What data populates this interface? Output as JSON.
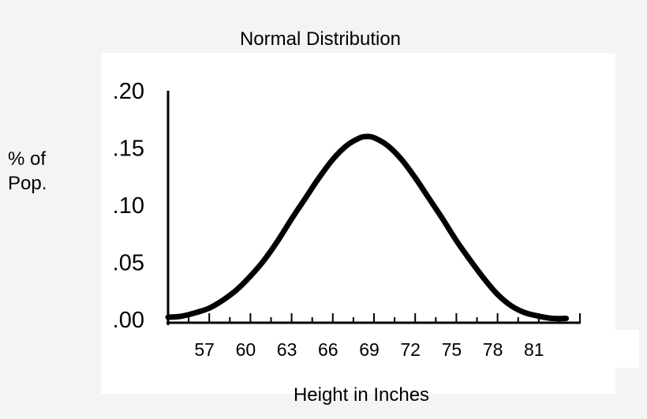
{
  "chart_data": {
    "type": "line",
    "title": "Normal Distribution",
    "xlabel": "Height in Inches",
    "ylabel": "% of\nPop.",
    "x_ticks": [
      "57",
      "60",
      "63",
      "66",
      "69",
      "72",
      "75",
      "78",
      "81"
    ],
    "y_ticks": [
      ".00",
      ".05",
      ".10",
      ".15",
      ".20"
    ],
    "ylim": [
      0,
      0.2
    ],
    "xlim": [
      54,
      84
    ],
    "grid": false,
    "series": [
      {
        "x": [
          54,
          55,
          56,
          57,
          58,
          59,
          60,
          61,
          62,
          63,
          64,
          65,
          66,
          67,
          68,
          68.5,
          69,
          70,
          71,
          72,
          73,
          74,
          75,
          76,
          77,
          78,
          79,
          80,
          81,
          82,
          83
        ],
        "values": [
          0.002,
          0.003,
          0.006,
          0.01,
          0.017,
          0.026,
          0.038,
          0.052,
          0.069,
          0.088,
          0.106,
          0.124,
          0.14,
          0.152,
          0.159,
          0.16,
          0.159,
          0.152,
          0.14,
          0.124,
          0.106,
          0.088,
          0.069,
          0.052,
          0.036,
          0.022,
          0.012,
          0.006,
          0.003,
          0.001,
          0.001
        ]
      }
    ]
  }
}
